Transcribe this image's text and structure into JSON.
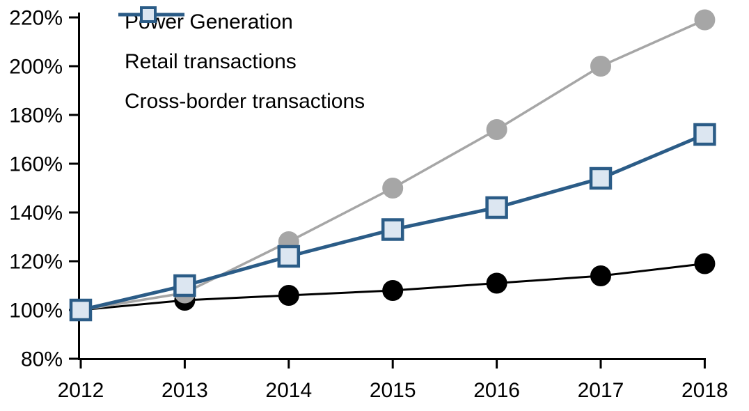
{
  "chart": {
    "background": "#ffffff",
    "axis_color": "#000000",
    "text_color": "#000000"
  },
  "chart_data": {
    "type": "line",
    "title": "",
    "subtitle": "",
    "xlabel": "",
    "ylabel": "",
    "unit": "%",
    "categories": [
      "2012",
      "2013",
      "2014",
      "2015",
      "2016",
      "2017",
      "2018"
    ],
    "series": [
      {
        "name": "Power Generation",
        "values": [
          100,
          104,
          106,
          108,
          111,
          114,
          119
        ],
        "color": "#000000",
        "marker": "circle",
        "marker_fill": "#000000",
        "line_width": 3
      },
      {
        "name": "Retail transactions",
        "values": [
          100,
          107,
          128,
          150,
          174,
          200,
          219
        ],
        "color": "#a6a6a6",
        "marker": "circle",
        "marker_fill": "#a6a6a6",
        "line_width": 3.5
      },
      {
        "name": "Cross-border transactions",
        "values": [
          100,
          110,
          122,
          133,
          142,
          154,
          172
        ],
        "color": "#2b5c87",
        "marker": "square",
        "marker_fill": "#dce6f1",
        "line_width": 5
      }
    ],
    "ylim": [
      80,
      220
    ],
    "ytick_step": 20,
    "ytick_labels": [
      "80%",
      "100%",
      "120%",
      "140%",
      "160%",
      "180%",
      "200%",
      "220%"
    ],
    "xtick_labels": [
      "2012",
      "2013",
      "2014",
      "2015",
      "2016",
      "2017",
      "2018"
    ],
    "grid": false,
    "legend_position": "top-left"
  }
}
